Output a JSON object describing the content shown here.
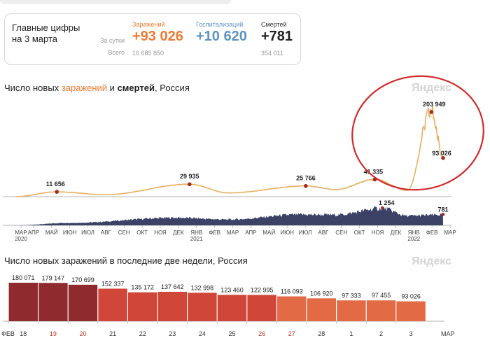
{
  "summary": {
    "title": "Главные цифры на 3 марта",
    "row_day_label": "За сутки",
    "row_total_label": "Всего",
    "infections": {
      "header": "Заражений",
      "day": "+93 026",
      "total": "16 685 850"
    },
    "hospitalizations": {
      "header": "Госпитализаций",
      "day": "+10 620"
    },
    "deaths": {
      "header": "Смертей",
      "day": "+781",
      "total": "354 011"
    }
  },
  "chart1": {
    "title_pre": "Число новых ",
    "title_accent": "заражений",
    "title_mid": " и ",
    "title_bold": "смертей",
    "title_post": ", Россия",
    "watermark": "Яндекс"
  },
  "chart2": {
    "title": "Число новых заражений в последние две недели, Россия",
    "watermark": "Яндекс"
  },
  "colors": {
    "infections": "#e8b061",
    "deaths_area": "#3b4266",
    "marker": "#a52a22",
    "annotation": "#d42a2a",
    "bar_dark": "#8f2a2f",
    "bar_mid": "#d0473a",
    "bar_light": "#e26a45"
  },
  "chart_data": [
    {
      "type": "line",
      "title": "Число новых заражений и смертей, Россия",
      "series": [
        {
          "name": "заражений",
          "x": [
            "2020-03",
            "2020-05-11",
            "2020-08",
            "2020-12-24",
            "2021-03",
            "2021-07-11",
            "2021-09",
            "2021-11-06",
            "2022-01",
            "2022-02-11",
            "2022-03-03"
          ],
          "values": [
            0,
            11656,
            4800,
            29935,
            9000,
            25766,
            17000,
            41335,
            15000,
            203949,
            93026
          ]
        },
        {
          "name": "смертей",
          "x": [
            "2020-03",
            "2020-06",
            "2020-12",
            "2021-03",
            "2021-07",
            "2021-09",
            "2021-11-19",
            "2022-01",
            "2022-03-03"
          ],
          "values": [
            0,
            180,
            560,
            430,
            790,
            780,
            1254,
            700,
            781
          ]
        }
      ],
      "annotations": [
        "11 656",
        "29 935",
        "25 766",
        "41 335",
        "203 949",
        "93 026",
        "1 254",
        "781"
      ],
      "x_ticks": [
        {
          "label": "МАР",
          "year": "2020"
        },
        {
          "label": "АПР",
          "year": ""
        },
        {
          "label": "МАЙ",
          "year": ""
        },
        {
          "label": "ИЮН",
          "year": ""
        },
        {
          "label": "ИЮЛ",
          "year": ""
        },
        {
          "label": "АВГ",
          "year": ""
        },
        {
          "label": "СЕН",
          "year": ""
        },
        {
          "label": "ОКТ",
          "year": ""
        },
        {
          "label": "НОЯ",
          "year": ""
        },
        {
          "label": "ДЕК",
          "year": ""
        },
        {
          "label": "ЯНВ",
          "year": "2021"
        },
        {
          "label": "ФЕВ",
          "year": ""
        },
        {
          "label": "МАР",
          "year": ""
        },
        {
          "label": "АПР",
          "year": ""
        },
        {
          "label": "МАЙ",
          "year": ""
        },
        {
          "label": "ИЮН",
          "year": ""
        },
        {
          "label": "ИЮЛ",
          "year": ""
        },
        {
          "label": "АВГ",
          "year": ""
        },
        {
          "label": "СЕН",
          "year": ""
        },
        {
          "label": "ОКТ",
          "year": ""
        },
        {
          "label": "НОЯ",
          "year": ""
        },
        {
          "label": "ДЕК",
          "year": ""
        },
        {
          "label": "ЯНВ",
          "year": "2022"
        },
        {
          "label": "ФЕВ",
          "year": ""
        },
        {
          "label": "МАР",
          "year": ""
        }
      ],
      "grid": false
    },
    {
      "type": "bar",
      "title": "Число новых заражений в последние две недели, Россия",
      "categories": [
        "18",
        "19",
        "20",
        "21",
        "22",
        "23",
        "24",
        "25",
        "26",
        "27",
        "28",
        "1",
        "2",
        "3"
      ],
      "weekend": [
        false,
        true,
        true,
        false,
        false,
        false,
        false,
        false,
        true,
        true,
        false,
        false,
        false,
        false
      ],
      "values": [
        180071,
        179147,
        170699,
        152337,
        135172,
        137642,
        132998,
        123460,
        122995,
        116093,
        106920,
        97333,
        97455,
        93026
      ],
      "value_labels": [
        "180 071",
        "179 147",
        "170 699",
        "152 337",
        "135 172",
        "137 642",
        "132 998",
        "123 460",
        "122 995",
        "116 093",
        "106 920",
        "97 333",
        "97 455",
        "93 026"
      ],
      "month_left": "ФЕВ",
      "month_right": "МАР"
    }
  ]
}
